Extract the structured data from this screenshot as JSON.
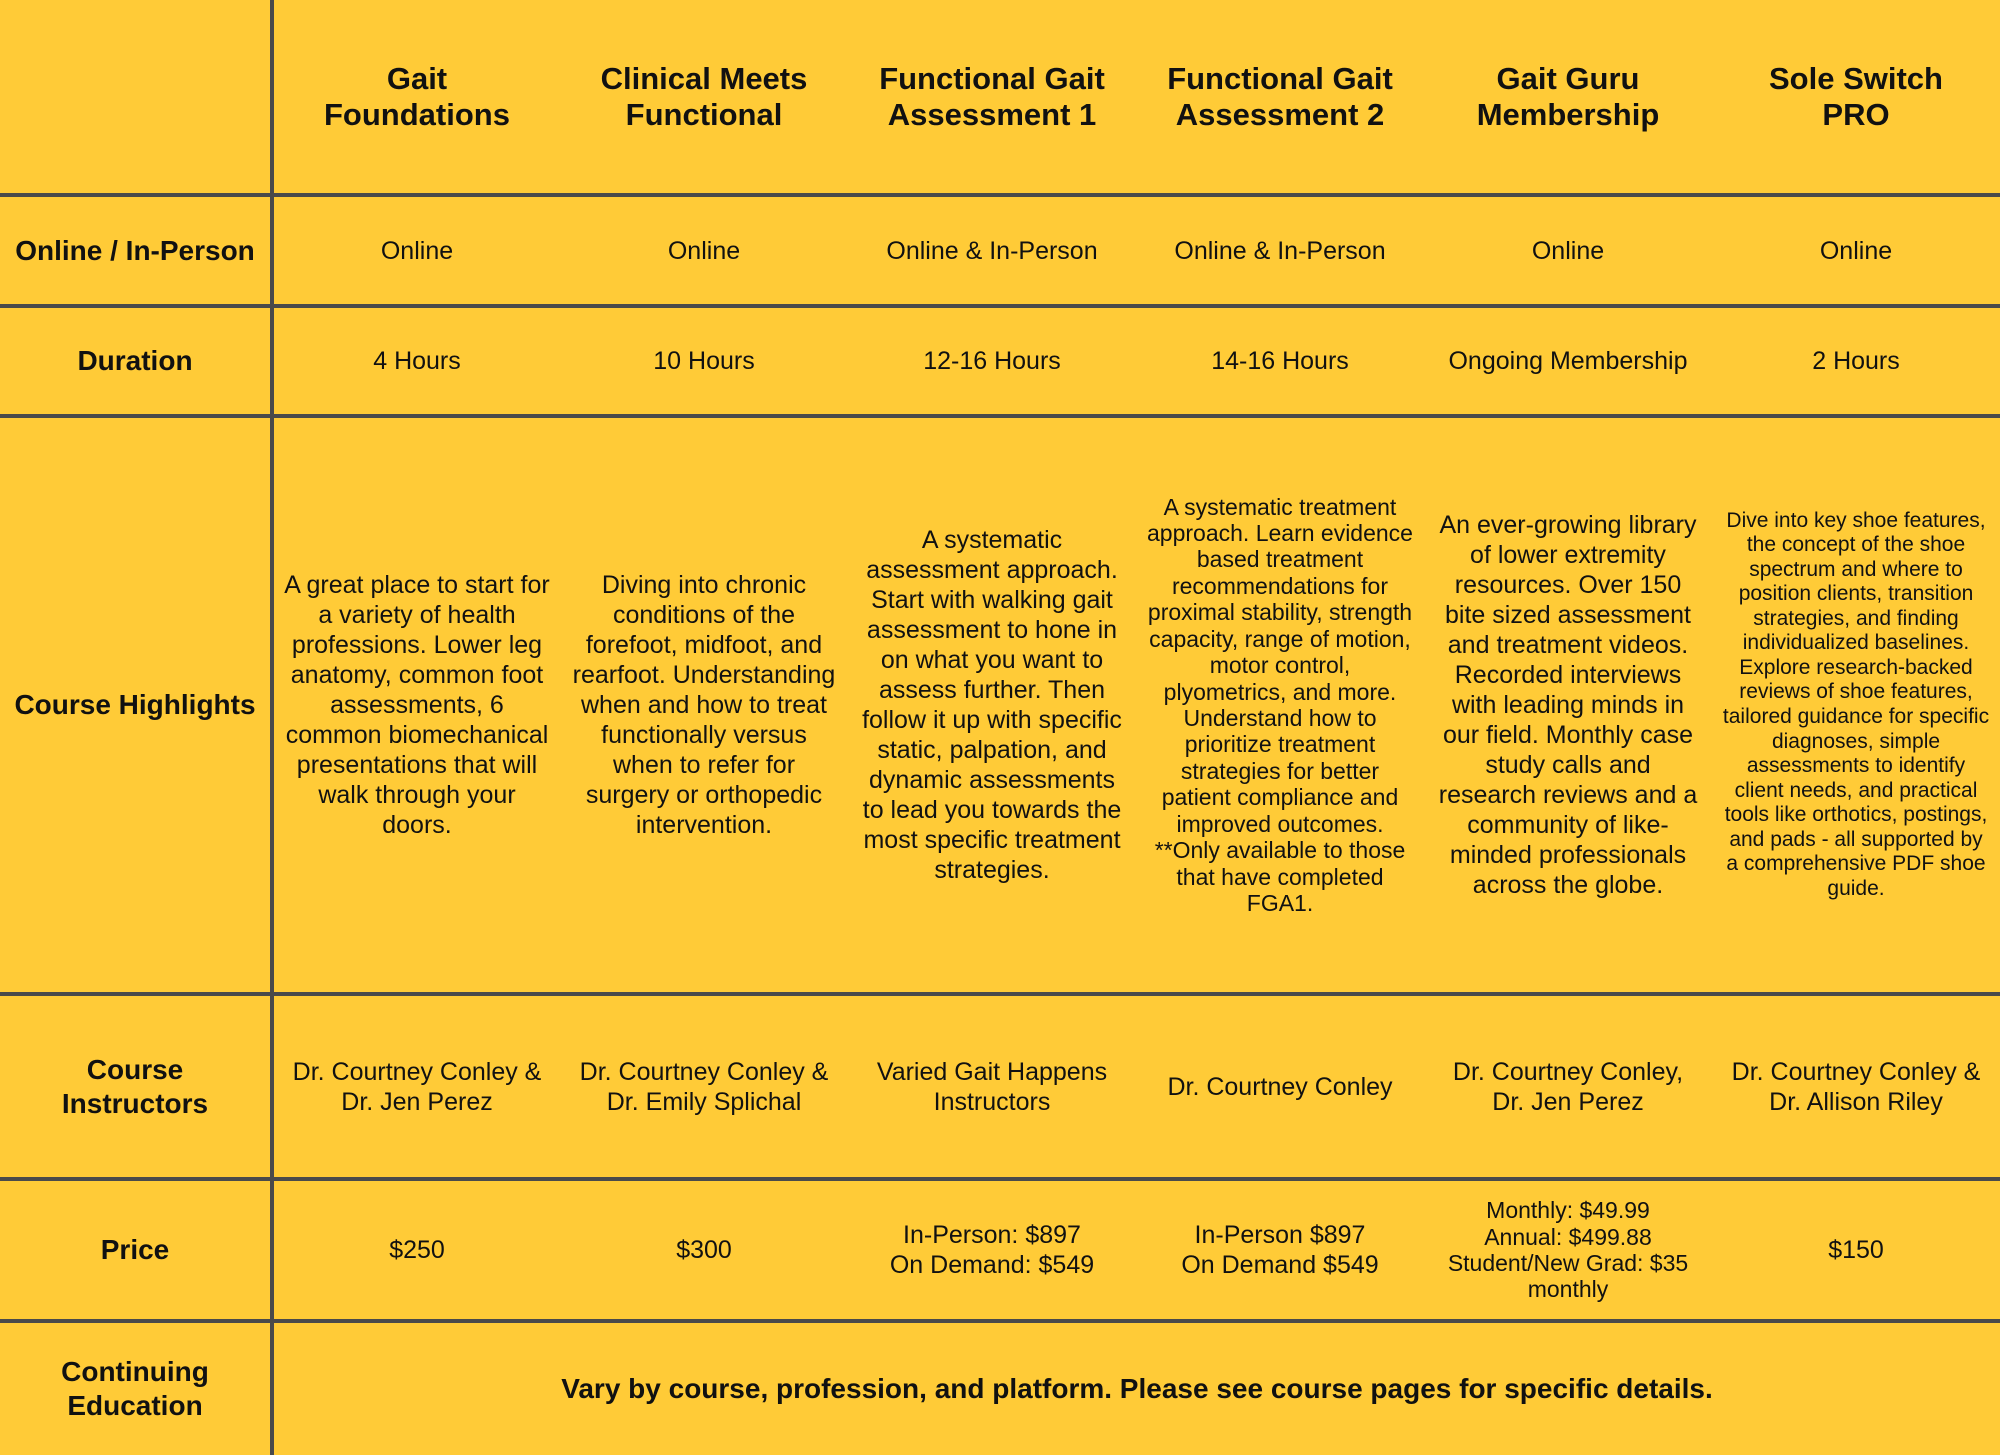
{
  "columns": [
    "Gait Foundations",
    "Clinical Meets Functional",
    "Functional Gait Assessment 1",
    "Functional Gait Assessment 2",
    "Gait Guru Membership",
    "Sole Switch PRO"
  ],
  "column_lines": [
    [
      "Gait",
      "Foundations"
    ],
    [
      "Clinical Meets",
      "Functional"
    ],
    [
      "Functional Gait",
      "Assessment 1"
    ],
    [
      "Functional Gait",
      "Assessment 2"
    ],
    [
      "Gait Guru",
      "Membership"
    ],
    [
      "Sole Switch",
      "PRO"
    ]
  ],
  "row_labels": {
    "format": "Online / In-Person",
    "duration": "Duration",
    "highlights": "Course Highlights",
    "instructors": "Course Instructors",
    "price": "Price",
    "ce": "Continuing Education"
  },
  "format": [
    "Online",
    "Online",
    "Online & In-Person",
    "Online & In-Person",
    "Online",
    "Online"
  ],
  "duration": [
    "4 Hours",
    "10 Hours",
    "12-16 Hours",
    "14-16 Hours",
    "Ongoing Membership",
    "2 Hours"
  ],
  "highlights": [
    "A great place to start for a variety of health professions. Lower leg anatomy, common foot assessments, 6 common biomechanical presentations that will walk through your doors.",
    "Diving into chronic conditions of the forefoot, midfoot, and rearfoot. Understanding when and how to treat functionally versus when to refer for surgery or orthopedic intervention.",
    "A systematic assessment approach. Start with walking gait assessment to hone in on what you want to assess further. Then follow it up with specific static, palpation, and dynamic assessments to lead you towards the most specific treatment strategies.",
    "A systematic treatment approach. Learn evidence based treatment recommendations for proximal stability, strength capacity, range of motion, motor control, plyometrics, and more. Understand how to prioritize treatment strategies for better patient compliance and improved outcomes. **Only available to those that have completed FGA1.",
    "An ever-growing library of lower extremity resources. Over 150 bite sized assessment and treatment videos. Recorded interviews with leading minds in our field. Monthly case study calls and research reviews and a community of like-minded professionals across the globe.",
    "Dive into key shoe features, the concept of the shoe spectrum and where to position clients, transition strategies, and finding individualized baselines. Explore research-backed reviews of shoe features, tailored guidance for specific diagnoses, simple assessments to identify client needs, and practical tools like orthotics, postings, and pads - all supported by a comprehensive PDF shoe guide."
  ],
  "instructors": [
    "Dr. Courtney Conley & Dr. Jen Perez",
    "Dr. Courtney Conley & Dr. Emily Splichal",
    "Varied Gait Happens Instructors",
    "Dr. Courtney Conley",
    "Dr. Courtney Conley, Dr. Jen Perez",
    "Dr. Courtney Conley & Dr. Allison Riley"
  ],
  "price": [
    [
      "$250"
    ],
    [
      "$300"
    ],
    [
      "In-Person: $897",
      "On Demand: $549"
    ],
    [
      "In-Person $897",
      "On Demand $549"
    ],
    [
      "Monthly: $49.99",
      "Annual: $499.88",
      "Student/New Grad: $35 monthly"
    ],
    [
      "$150"
    ]
  ],
  "ce_text": "Vary by course, profession, and platform. Please see course pages for specific details.",
  "colors": {
    "background": "#FFCB37",
    "grid_lines": "#4a4a4a",
    "text": "#111111"
  }
}
